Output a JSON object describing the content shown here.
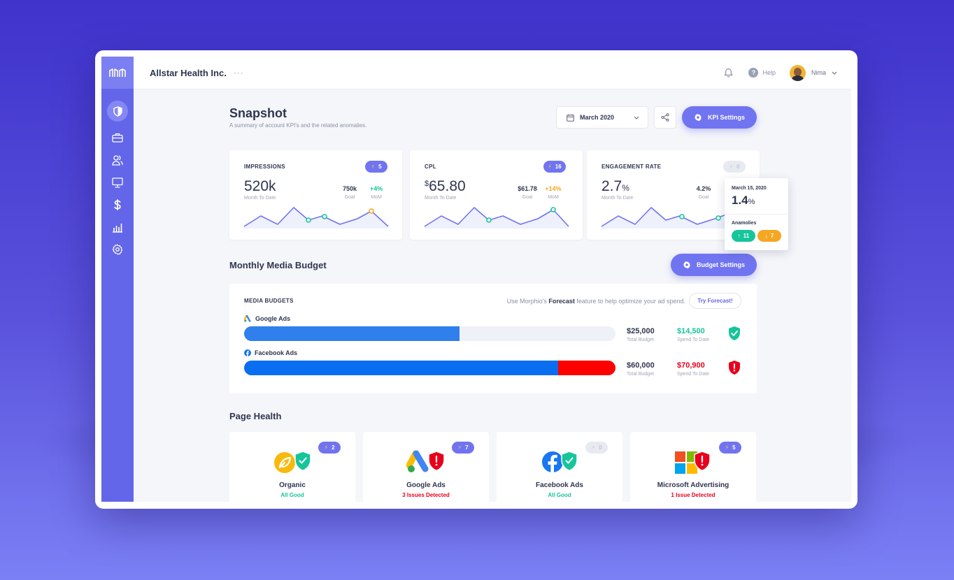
{
  "header": {
    "org_name": "Allstar Health Inc.",
    "more_glyph": "···",
    "help_label": "Help",
    "user_name": "Nima"
  },
  "snapshot": {
    "title": "Snapshot",
    "subtitle": "A summary of account KPI's and the related anomalies.",
    "date_label": "March 2020",
    "kpi_settings_label": "KPI Settings"
  },
  "kpis": [
    {
      "label": "IMPRESSIONS",
      "badge": "5",
      "value": "520k",
      "value_sub": "Month To Date",
      "goal": "750k",
      "goal_label": "Goal",
      "mom": "+4%",
      "mom_label": "MoM",
      "mom_color": "#17c59a"
    },
    {
      "label": "CPL",
      "badge": "16",
      "currency": "$",
      "value": "65.80",
      "value_sub": "Month To Date",
      "goal": "$61.78",
      "goal_label": "Goal",
      "mom": "+14%",
      "mom_label": "MoM",
      "mom_color": "#f5a623"
    },
    {
      "label": "ENGAGEMENT RATE",
      "badge": "0",
      "value": "2.7",
      "unit": "%",
      "value_sub": "Month To Date",
      "goal": "4.2%",
      "goal_label": "Goal"
    }
  ],
  "tooltip": {
    "date": "March 15, 2020",
    "value": "1.4",
    "unit": "%",
    "anomalies_label": "Anamolies",
    "up_count": "11",
    "down_count": "7"
  },
  "budget": {
    "section_title": "Monthly Media Budget",
    "settings_label": "Budget Settings",
    "card_label": "MEDIA BUDGETS",
    "forecast_pre": "Use Morphio's ",
    "forecast_bold": "Forecast",
    "forecast_post": " feature to help optimize your ad spend.",
    "try_label": "Try Forecast!",
    "channels": [
      {
        "name": "Google Ads",
        "total": "$25,000",
        "total_label": "Total Budget",
        "spend": "$14,500",
        "spend_label": "Spend To Date",
        "spend_fraction": 0.58,
        "over_fraction": 0,
        "status": "ok"
      },
      {
        "name": "Facebook Ads",
        "total": "$60,000",
        "total_label": "Total Budget",
        "spend": "$70,900",
        "spend_label": "Spend To Date",
        "spend_fraction": 0.846,
        "over_fraction": 0.154,
        "status": "alert"
      }
    ]
  },
  "health": {
    "section_title": "Page Health",
    "items": [
      {
        "name": "Organic",
        "status": "All Good",
        "badge": "2",
        "ok": true
      },
      {
        "name": "Google Ads",
        "status": "3 Issues Detected",
        "badge": "7",
        "ok": false
      },
      {
        "name": "Facebook Ads",
        "status": "All Good",
        "badge": "0",
        "ok": true
      },
      {
        "name": "Microsoft Advertising",
        "status": "1 Issue Detected",
        "badge": "5",
        "ok": false
      }
    ]
  },
  "colors": {
    "accent": "#6366e8",
    "good": "#17c59a",
    "bad": "#e8001c",
    "warn": "#f5a623",
    "google_blue": "#2f80ed",
    "facebook_blue": "#0a6ef0"
  },
  "icons": [
    "logo-icon",
    "shield-icon",
    "briefcase-icon",
    "users-icon",
    "monitor-icon",
    "dollar-icon",
    "bar-chart-icon",
    "gear-icon",
    "bell-icon",
    "help-icon",
    "chevron-down-icon",
    "calendar-icon",
    "share-icon",
    "bolt-icon"
  ]
}
